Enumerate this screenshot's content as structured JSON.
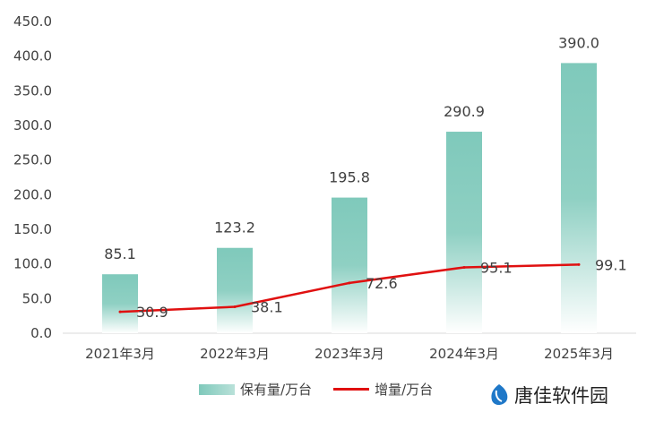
{
  "chart_data": {
    "type": "bar",
    "categories": [
      "2021年3月",
      "2022年3月",
      "2023年3月",
      "2024年3月",
      "2025年3月"
    ],
    "y_ticks": [
      "0.0",
      "50.0",
      "100.0",
      "150.0",
      "200.0",
      "250.0",
      "300.0",
      "350.0",
      "400.0",
      "450.0"
    ],
    "ylim": [
      0,
      450
    ],
    "grid": false,
    "legend_position": "bottom-center",
    "series": [
      {
        "name": "保有量/万台",
        "type": "bar",
        "values": [
          85.1,
          123.2,
          195.8,
          290.9,
          390.0
        ],
        "labels": [
          "85.1",
          "123.2",
          "195.8",
          "290.9",
          "390.0"
        ],
        "color": "#7fc9bb"
      },
      {
        "name": "增量/万台",
        "type": "line",
        "values": [
          30.9,
          38.1,
          72.6,
          95.1,
          99.1
        ],
        "labels": [
          "30.9",
          "38.1",
          "72.6",
          "95.1",
          "99.1"
        ],
        "color": "#e01010"
      }
    ]
  },
  "legend": {
    "bar_label": "保有量/万台",
    "line_label": "增量/万台"
  },
  "watermark": {
    "text": "唐佳软件园"
  }
}
